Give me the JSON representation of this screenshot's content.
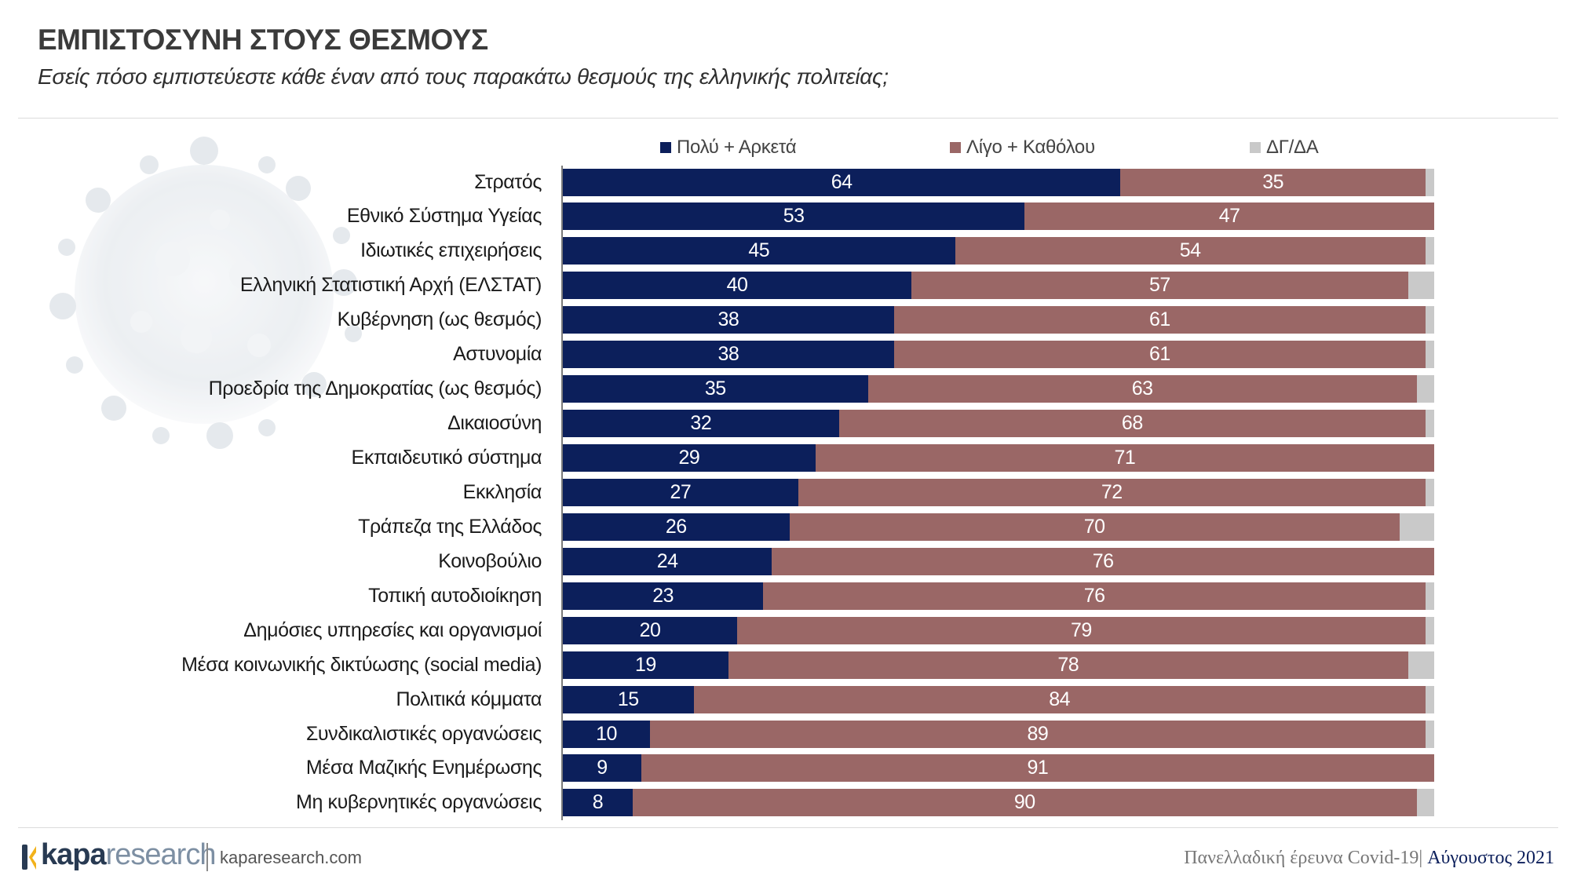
{
  "header": {
    "title": "ΕΜΠΙΣΤΟΣΥΝΗ ΣΤΟΥΣ ΘΕΣΜΟΥΣ",
    "subtitle": "Εσείς πόσο εμπιστεύεστε κάθε έναν από τους παρακάτω θεσμούς της ελληνικής πολιτείας;"
  },
  "chart_data": {
    "type": "bar",
    "orientation": "horizontal",
    "stacked": true,
    "xlim": [
      0,
      100
    ],
    "legend_position": "top",
    "categories": [
      "Στρατός",
      "Εθνικό Σύστημα Υγείας",
      "Ιδιωτικές επιχειρήσεις",
      "Ελληνική Στατιστική Αρχή (ΕΛΣΤΑΤ)",
      "Κυβέρνηση (ως θεσμός)",
      "Αστυνομία",
      "Προεδρία της Δημοκρατίας (ως θεσμός)",
      "Δικαιοσύνη",
      "Εκπαιδευτικό σύστημα",
      "Εκκλησία",
      "Τράπεζα της Ελλάδος",
      "Κοινοβούλιο",
      "Τοπική αυτοδιοίκηση",
      "Δημόσιες υπηρεσίες και οργανισμοί",
      "Μέσα κοινωνικής δικτύωσης (social media)",
      "Πολιτικά κόμματα",
      "Συνδικαλιστικές οργανώσεις",
      "Μέσα Μαζικής Ενημέρωσης",
      "Μη κυβερνητικές οργανώσεις"
    ],
    "series": [
      {
        "name": "Πολύ + Αρκετά",
        "color": "#0c1f5b",
        "values": [
          64,
          53,
          45,
          40,
          38,
          38,
          35,
          32,
          29,
          27,
          26,
          24,
          23,
          20,
          19,
          15,
          10,
          9,
          8
        ]
      },
      {
        "name": "Λίγο + Καθόλου",
        "color": "#9a6766",
        "values": [
          35,
          47,
          54,
          57,
          61,
          61,
          63,
          68,
          71,
          72,
          70,
          76,
          76,
          79,
          78,
          84,
          89,
          91,
          90
        ]
      },
      {
        "name": "ΔΓ/ΔΑ",
        "color": "#c9c9c9",
        "values": [
          1,
          0,
          1,
          3,
          1,
          1,
          2,
          1,
          0,
          1,
          4,
          0,
          1,
          1,
          3,
          1,
          1,
          0,
          2
        ]
      }
    ]
  },
  "footer": {
    "brand_bold": "kapa",
    "brand_light": "research",
    "website": "kaparesearch.com",
    "survey": "Πανελλαδική έρευνα Covid-19|",
    "date": " Αύγουστος 2021"
  }
}
